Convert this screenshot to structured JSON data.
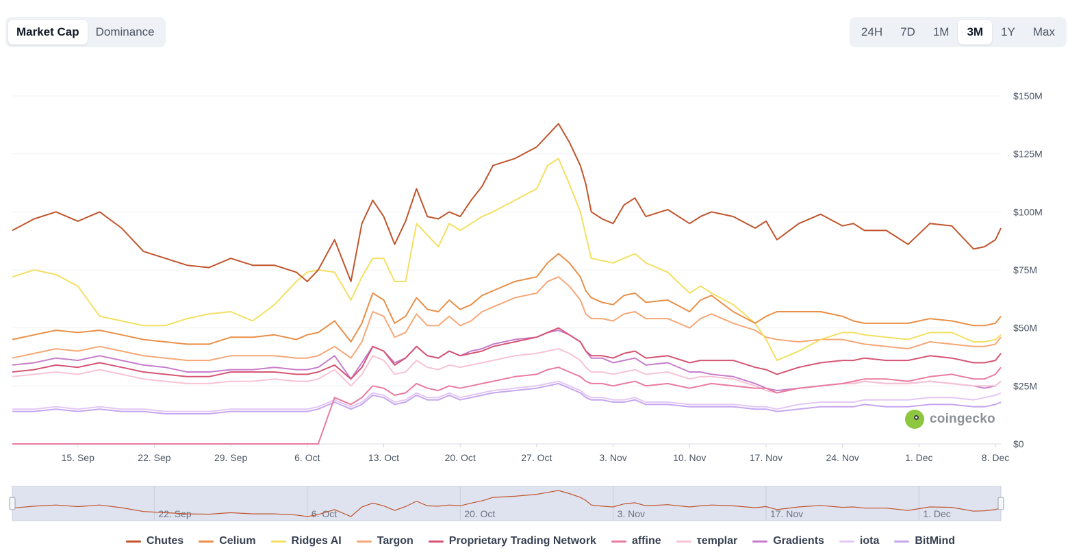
{
  "tabs": {
    "left": [
      {
        "label": "Market Cap",
        "active": true
      },
      {
        "label": "Dominance",
        "active": false
      }
    ],
    "right": [
      {
        "label": "24H",
        "active": false
      },
      {
        "label": "7D",
        "active": false
      },
      {
        "label": "1M",
        "active": false
      },
      {
        "label": "3M",
        "active": true
      },
      {
        "label": "1Y",
        "active": false
      },
      {
        "label": "Max",
        "active": false
      }
    ]
  },
  "watermark": "coingecko",
  "chart_data": {
    "type": "line",
    "title": "",
    "xlabel": "",
    "ylabel": "",
    "x_unit": "days since 15 Sep",
    "xlim": [
      -6,
      84.5
    ],
    "ylim": [
      0,
      150
    ],
    "y_ticks": [
      0,
      25,
      50,
      75,
      100,
      125,
      150
    ],
    "y_tick_labels": [
      "$0",
      "$25M",
      "$50M",
      "$75M",
      "$100M",
      "$125M",
      "$150M"
    ],
    "x_ticks": [
      0,
      7,
      14,
      21,
      28,
      35,
      42,
      49,
      56,
      63,
      70,
      77,
      84
    ],
    "x_tick_labels": [
      "15. Sep",
      "22. Sep",
      "29. Sep",
      "6. Oct",
      "13. Oct",
      "20. Oct",
      "27. Oct",
      "3. Nov",
      "10. Nov",
      "17. Nov",
      "24. Nov",
      "1. Dec",
      "8. Dec"
    ],
    "navigator_labels": [
      "22. Sep",
      "6. Oct",
      "20. Oct",
      "3. Nov",
      "17. Nov",
      "1. Dec"
    ],
    "grid": true,
    "legend_position": "bottom",
    "x": [
      -6,
      -4,
      -2,
      0,
      2,
      4,
      6,
      8,
      10,
      12,
      14,
      16,
      18,
      20,
      21,
      22,
      23.5,
      25,
      26,
      27,
      28,
      29,
      30,
      31,
      32,
      33,
      34,
      35,
      36,
      37,
      38,
      40,
      42,
      43,
      44,
      45,
      46,
      46.5,
      47,
      48,
      49,
      50,
      51,
      52,
      54,
      56,
      57,
      58,
      60,
      62,
      63,
      64,
      66,
      68,
      70,
      71,
      72,
      74,
      76,
      78,
      80,
      82,
      83,
      84,
      84.5
    ],
    "series": [
      {
        "name": "Chutes",
        "color": "#c0542b",
        "values": [
          92,
          97,
          100,
          96,
          100,
          93,
          83,
          80,
          77,
          76,
          80,
          77,
          77,
          74,
          70,
          75,
          88,
          70,
          95,
          105,
          98,
          86,
          96,
          110,
          98,
          97,
          100,
          98,
          105,
          111,
          120,
          123,
          128,
          133,
          138,
          130,
          120,
          112,
          100,
          97,
          95,
          103,
          106,
          98,
          101,
          95,
          98,
          100,
          98,
          93,
          96,
          88,
          95,
          99,
          94,
          95,
          92,
          92,
          86,
          95,
          94,
          84,
          85,
          88,
          93
        ]
      },
      {
        "name": "Celium",
        "color": "#e98f47",
        "values": [
          45,
          47,
          49,
          48,
          49,
          47,
          45,
          44,
          43,
          43,
          46,
          46,
          47,
          45,
          47,
          48,
          53,
          44,
          52,
          65,
          62,
          52,
          55,
          63,
          58,
          57,
          62,
          58,
          60,
          64,
          66,
          70,
          72,
          78,
          82,
          78,
          72,
          66,
          63,
          61,
          60,
          64,
          65,
          61,
          62,
          57,
          62,
          64,
          57,
          52,
          55,
          57,
          57,
          57,
          55,
          53,
          52,
          52,
          52,
          54,
          53,
          51,
          51,
          52,
          55
        ]
      },
      {
        "name": "Ridges AI",
        "color": "#f3df61",
        "values": [
          72,
          75,
          73,
          68,
          55,
          53,
          51,
          51,
          54,
          56,
          57,
          53,
          60,
          70,
          74,
          75,
          74,
          62,
          72,
          80,
          80,
          70,
          70,
          95,
          90,
          85,
          95,
          92,
          95,
          98,
          100,
          105,
          110,
          120,
          123,
          112,
          100,
          90,
          80,
          79,
          78,
          80,
          82,
          78,
          74,
          65,
          68,
          65,
          60,
          52,
          45,
          36,
          40,
          45,
          48,
          48,
          47,
          46,
          45,
          48,
          48,
          44,
          44,
          45,
          47
        ]
      },
      {
        "name": "Targon",
        "color": "#f6a776",
        "values": [
          37,
          39,
          41,
          40,
          42,
          40,
          38,
          37,
          36,
          36,
          38,
          38,
          38,
          37,
          37,
          38,
          42,
          37,
          44,
          57,
          55,
          46,
          48,
          56,
          51,
          51,
          55,
          51,
          53,
          57,
          59,
          63,
          65,
          70,
          72,
          68,
          62,
          56,
          54,
          54,
          53,
          56,
          57,
          54,
          54,
          50,
          54,
          56,
          52,
          49,
          46,
          45,
          44,
          45,
          45,
          44,
          43,
          42,
          41,
          44,
          43,
          42,
          42,
          43,
          46
        ]
      },
      {
        "name": "Proprietary Trading Network",
        "color": "#d55473",
        "values": [
          31,
          32,
          34,
          33,
          35,
          33,
          31,
          30,
          29,
          29,
          31,
          31,
          31,
          30,
          30,
          31,
          34,
          28,
          33,
          42,
          40,
          34,
          37,
          42,
          38,
          37,
          40,
          38,
          39,
          40,
          42,
          44,
          46,
          48,
          50,
          47,
          44,
          40,
          38,
          38,
          37,
          39,
          40,
          37,
          38,
          35,
          36,
          36,
          36,
          33,
          32,
          30,
          33,
          35,
          36,
          36,
          37,
          36,
          36,
          38,
          37,
          35,
          35,
          36,
          39
        ]
      },
      {
        "name": "affine",
        "color": "#e97b9e",
        "values": [
          0,
          0,
          0,
          0,
          0,
          0,
          0,
          0,
          0,
          0,
          0,
          0,
          0,
          0,
          0,
          0,
          20,
          17,
          20,
          25,
          24,
          21,
          22,
          26,
          24,
          23,
          25,
          24,
          25,
          26,
          27,
          29,
          30,
          32,
          33,
          31,
          29,
          27,
          26,
          26,
          25,
          26,
          27,
          25,
          26,
          24,
          25,
          26,
          25,
          24,
          24,
          22,
          24,
          25,
          26,
          27,
          28,
          28,
          27,
          29,
          30,
          28,
          28,
          30,
          33
        ]
      },
      {
        "name": "τemplar",
        "color": "#f7c3d4",
        "values": [
          29,
          30,
          31,
          30,
          32,
          30,
          28,
          27,
          26,
          26,
          27,
          27,
          28,
          27,
          27,
          28,
          32,
          25,
          30,
          38,
          36,
          30,
          31,
          36,
          33,
          32,
          34,
          33,
          34,
          35,
          36,
          38,
          39,
          40,
          41,
          39,
          36,
          33,
          31,
          31,
          30,
          31,
          32,
          30,
          31,
          28,
          29,
          29,
          28,
          25,
          23,
          22,
          24,
          25,
          26,
          26,
          27,
          26,
          26,
          27,
          26,
          25,
          25,
          25,
          27
        ]
      },
      {
        "name": "Gradients",
        "color": "#c77ccb",
        "values": [
          34,
          35,
          37,
          36,
          38,
          36,
          34,
          33,
          31,
          31,
          32,
          32,
          33,
          32,
          32,
          33,
          38,
          28,
          35,
          42,
          40,
          35,
          37,
          42,
          38,
          37,
          40,
          38,
          40,
          41,
          43,
          45,
          46,
          48,
          49,
          47,
          44,
          40,
          37,
          37,
          35,
          36,
          37,
          34,
          35,
          31,
          31,
          30,
          29,
          26,
          24,
          23,
          24,
          25,
          26,
          26,
          27,
          26,
          26,
          27,
          26,
          25,
          24,
          25,
          27
        ]
      },
      {
        "name": "iota",
        "color": "#e3c7f4",
        "values": [
          15,
          15,
          16,
          15,
          16,
          15,
          15,
          14,
          14,
          14,
          15,
          15,
          15,
          15,
          15,
          16,
          19,
          16,
          18,
          22,
          21,
          18,
          19,
          22,
          20,
          20,
          22,
          20,
          21,
          22,
          23,
          24,
          25,
          26,
          27,
          25,
          23,
          21,
          20,
          20,
          19,
          19,
          20,
          18,
          18,
          17,
          17,
          17,
          17,
          16,
          16,
          15,
          17,
          18,
          18,
          18,
          19,
          19,
          19,
          20,
          20,
          19,
          20,
          21,
          22
        ]
      },
      {
        "name": "BitMind",
        "color": "#c5a6ef",
        "values": [
          14,
          14,
          15,
          14,
          15,
          14,
          14,
          13,
          13,
          13,
          14,
          14,
          14,
          14,
          14,
          15,
          18,
          15,
          17,
          21,
          20,
          17,
          18,
          21,
          19,
          19,
          21,
          19,
          20,
          21,
          22,
          23,
          24,
          25,
          26,
          24,
          22,
          20,
          19,
          19,
          18,
          18,
          19,
          17,
          17,
          16,
          16,
          16,
          16,
          15,
          15,
          14,
          15,
          16,
          16,
          16,
          17,
          16,
          16,
          17,
          17,
          16,
          16,
          17,
          18
        ]
      }
    ]
  }
}
